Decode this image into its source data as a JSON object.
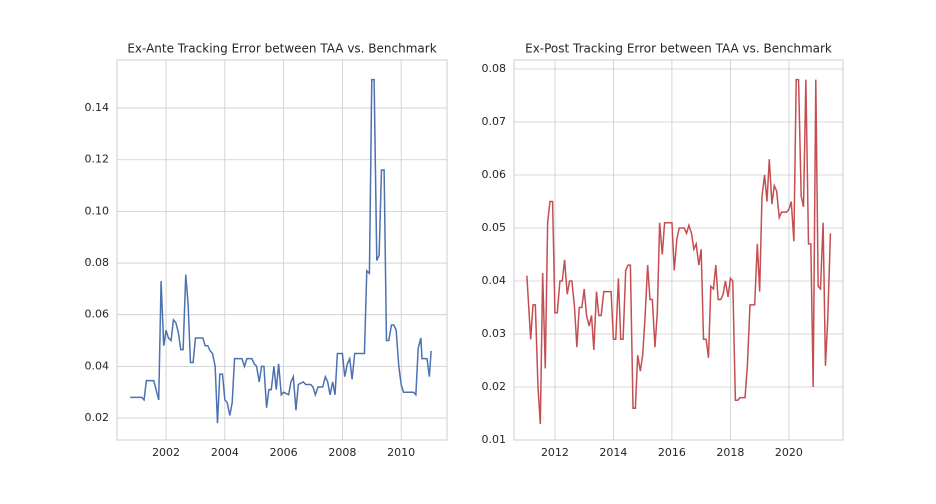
{
  "chart_data": [
    {
      "type": "line",
      "title": "Ex-Ante Tracking Error between TAA vs. Benchmark",
      "color": "#4c72b0",
      "grid": true,
      "x": [
        2000.78,
        2001.17,
        2001.25,
        2001.33,
        2001.58,
        2001.75,
        2001.83,
        2001.92,
        2002.0,
        2002.08,
        2002.17,
        2002.25,
        2002.33,
        2002.42,
        2002.5,
        2002.58,
        2002.67,
        2002.75,
        2002.83,
        2002.92,
        2003.0,
        2003.08,
        2003.25,
        2003.33,
        2003.42,
        2003.5,
        2003.58,
        2003.67,
        2003.75,
        2003.83,
        2003.92,
        2004.0,
        2004.08,
        2004.17,
        2004.25,
        2004.33,
        2004.58,
        2004.67,
        2004.75,
        2004.92,
        2005.0,
        2005.08,
        2005.17,
        2005.25,
        2005.33,
        2005.42,
        2005.5,
        2005.58,
        2005.67,
        2005.75,
        2005.83,
        2005.92,
        2006.0,
        2006.17,
        2006.25,
        2006.33,
        2006.42,
        2006.5,
        2006.67,
        2006.75,
        2006.92,
        2007.0,
        2007.08,
        2007.17,
        2007.33,
        2007.42,
        2007.5,
        2007.58,
        2007.67,
        2007.75,
        2007.83,
        2008.0,
        2008.08,
        2008.17,
        2008.25,
        2008.33,
        2008.42,
        2008.75,
        2008.83,
        2008.92,
        2009.0,
        2009.08,
        2009.17,
        2009.25,
        2009.33,
        2009.42,
        2009.5,
        2009.58,
        2009.67,
        2009.75,
        2009.83,
        2009.92,
        2010.0,
        2010.08,
        2010.42,
        2010.5,
        2010.58,
        2010.67,
        2010.71,
        2010.88,
        2010.96,
        2011.02
      ],
      "values": [
        0.028,
        0.028,
        0.027,
        0.0345,
        0.0345,
        0.027,
        0.073,
        0.048,
        0.054,
        0.051,
        0.05,
        0.058,
        0.057,
        0.053,
        0.0465,
        0.0465,
        0.0755,
        0.064,
        0.0415,
        0.0415,
        0.051,
        0.051,
        0.051,
        0.048,
        0.048,
        0.046,
        0.045,
        0.04,
        0.018,
        0.037,
        0.037,
        0.027,
        0.026,
        0.021,
        0.026,
        0.043,
        0.043,
        0.04,
        0.043,
        0.043,
        0.041,
        0.04,
        0.034,
        0.04,
        0.04,
        0.024,
        0.031,
        0.031,
        0.04,
        0.031,
        0.041,
        0.029,
        0.03,
        0.029,
        0.034,
        0.036,
        0.023,
        0.033,
        0.034,
        0.033,
        0.033,
        0.032,
        0.029,
        0.032,
        0.032,
        0.036,
        0.034,
        0.029,
        0.034,
        0.029,
        0.045,
        0.045,
        0.036,
        0.041,
        0.043,
        0.035,
        0.045,
        0.045,
        0.077,
        0.076,
        0.151,
        0.151,
        0.081,
        0.083,
        0.116,
        0.116,
        0.05,
        0.05,
        0.056,
        0.056,
        0.054,
        0.04,
        0.033,
        0.03,
        0.03,
        0.029,
        0.047,
        0.051,
        0.043,
        0.043,
        0.036,
        0.046
      ],
      "xlim": [
        2000.33,
        2011.56
      ],
      "xticks": [
        2002,
        2004,
        2006,
        2008,
        2010
      ],
      "ylim": [
        0.0115,
        0.1586
      ],
      "yticks": [
        0.02,
        0.04,
        0.06,
        0.08,
        {
          "value": 0.1,
          "label": "0.10"
        },
        0.12,
        0.14
      ]
    },
    {
      "type": "line",
      "title": "Ex-Post Tracking Error between TAA vs. Benchmark",
      "color": "#c44e52",
      "grid": true,
      "x": [
        2011.04,
        2011.17,
        2011.25,
        2011.33,
        2011.42,
        2011.5,
        2011.58,
        2011.67,
        2011.75,
        2011.83,
        2011.92,
        2012.0,
        2012.08,
        2012.17,
        2012.25,
        2012.33,
        2012.42,
        2012.5,
        2012.58,
        2012.67,
        2012.75,
        2012.83,
        2012.92,
        2013.0,
        2013.08,
        2013.17,
        2013.25,
        2013.33,
        2013.42,
        2013.5,
        2013.58,
        2013.67,
        2013.92,
        2014.0,
        2014.08,
        2014.17,
        2014.25,
        2014.33,
        2014.42,
        2014.5,
        2014.58,
        2014.67,
        2014.75,
        2014.83,
        2014.92,
        2015.0,
        2015.08,
        2015.17,
        2015.25,
        2015.33,
        2015.42,
        2015.5,
        2015.58,
        2015.67,
        2015.75,
        2016.0,
        2016.08,
        2016.17,
        2016.25,
        2016.42,
        2016.5,
        2016.58,
        2016.67,
        2016.75,
        2016.83,
        2016.92,
        2017.0,
        2017.08,
        2017.17,
        2017.25,
        2017.33,
        2017.42,
        2017.5,
        2017.58,
        2017.67,
        2017.75,
        2017.83,
        2017.92,
        2018.0,
        2018.08,
        2018.17,
        2018.25,
        2018.33,
        2018.5,
        2018.58,
        2018.67,
        2018.83,
        2018.92,
        2019.0,
        2019.08,
        2019.17,
        2019.25,
        2019.33,
        2019.42,
        2019.5,
        2019.58,
        2019.67,
        2019.75,
        2019.92,
        2020.0,
        2020.08,
        2020.17,
        2020.25,
        2020.33,
        2020.42,
        2020.5,
        2020.58,
        2020.67,
        2020.75,
        2020.83,
        2020.92,
        2021.0,
        2021.08,
        2021.17,
        2021.25,
        2021.33,
        2021.42
      ],
      "values": [
        0.041,
        0.029,
        0.0355,
        0.0355,
        0.02,
        0.013,
        0.0415,
        0.0235,
        0.051,
        0.055,
        0.055,
        0.034,
        0.034,
        0.04,
        0.04,
        0.044,
        0.0375,
        0.04,
        0.04,
        0.035,
        0.0275,
        0.035,
        0.035,
        0.0385,
        0.0335,
        0.0315,
        0.0335,
        0.027,
        0.038,
        0.0335,
        0.0335,
        0.038,
        0.038,
        0.029,
        0.029,
        0.0405,
        0.029,
        0.029,
        0.042,
        0.043,
        0.043,
        0.016,
        0.016,
        0.026,
        0.023,
        0.026,
        0.033,
        0.043,
        0.0365,
        0.0365,
        0.0275,
        0.034,
        0.051,
        0.045,
        0.051,
        0.051,
        0.042,
        0.048,
        0.05,
        0.05,
        0.049,
        0.0505,
        0.049,
        0.046,
        0.047,
        0.043,
        0.046,
        0.029,
        0.029,
        0.0255,
        0.039,
        0.0385,
        0.043,
        0.0365,
        0.0365,
        0.0375,
        0.04,
        0.037,
        0.0405,
        0.04,
        0.0175,
        0.0175,
        0.018,
        0.018,
        0.024,
        0.0355,
        0.0355,
        0.047,
        0.038,
        0.056,
        0.06,
        0.055,
        0.063,
        0.0545,
        0.058,
        0.057,
        0.052,
        0.053,
        0.053,
        0.0535,
        0.055,
        0.0475,
        0.078,
        0.078,
        0.056,
        0.054,
        0.078,
        0.047,
        0.047,
        0.02,
        0.078,
        0.039,
        0.0385,
        0.051,
        0.024,
        0.033,
        0.049
      ],
      "xlim": [
        2010.6,
        2021.85
      ],
      "xticks": [
        2012,
        2014,
        2016,
        2018,
        2020
      ],
      "ylim": [
        0.01,
        0.0817
      ],
      "yticks": [
        0.01,
        0.02,
        0.03,
        0.04,
        0.05,
        0.06,
        0.07,
        0.08
      ]
    }
  ]
}
